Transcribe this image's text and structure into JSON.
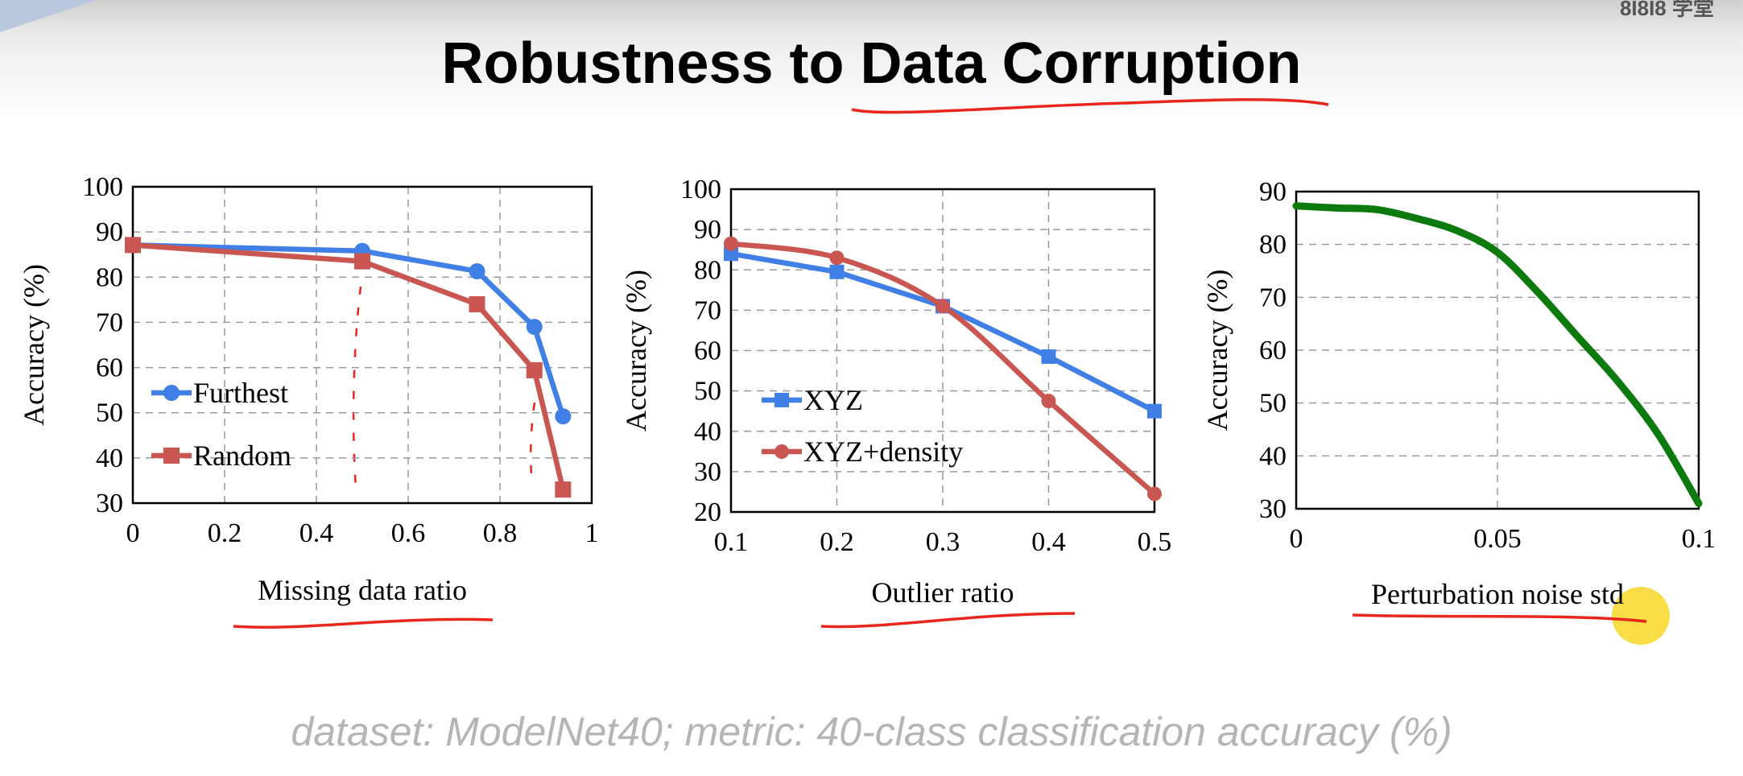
{
  "slide": {
    "title": "Robustness to Data Corruption",
    "watermark": "8I8I8 学堂",
    "footer": "dataset: ModelNet40; metric: 40-class classification accuracy (%)"
  },
  "colors": {
    "blue": "#3f7fe6",
    "red": "#c95650",
    "green": "#0d7a0d",
    "annotation_red": "#e8261c",
    "highlight": "#f5d10a"
  },
  "chart_data": [
    {
      "type": "line",
      "xlabel": "Missing data ratio",
      "ylabel": "Accuracy (%)",
      "xlim": [
        0,
        1
      ],
      "ylim": [
        30,
        100
      ],
      "xticks": [
        "0",
        "0.2",
        "0.4",
        "0.6",
        "0.8",
        "1"
      ],
      "yticks": [
        "30",
        "40",
        "50",
        "60",
        "70",
        "80",
        "90",
        "100"
      ],
      "grid": true,
      "legend_position": "lower-left",
      "series": [
        {
          "name": "Furthest",
          "marker": "circle",
          "color": "#3f7fe6",
          "x": [
            0,
            0.5,
            0.75,
            0.875,
            0.9375
          ],
          "y": [
            87.1,
            85.8,
            81.3,
            69.0,
            49.2
          ]
        },
        {
          "name": "Random",
          "marker": "square",
          "color": "#c95650",
          "x": [
            0,
            0.5,
            0.75,
            0.875,
            0.9375
          ],
          "y": [
            87.1,
            83.5,
            74.0,
            59.4,
            33.0
          ]
        }
      ]
    },
    {
      "type": "line",
      "xlabel": "Outlier ratio",
      "ylabel": "Accuracy (%)",
      "xlim": [
        0.1,
        0.5
      ],
      "ylim": [
        20,
        100
      ],
      "xticks": [
        "0.1",
        "0.2",
        "0.3",
        "0.4",
        "0.5"
      ],
      "yticks": [
        "20",
        "30",
        "40",
        "50",
        "60",
        "70",
        "80",
        "90",
        "100"
      ],
      "grid": true,
      "legend_position": "lower-left",
      "series": [
        {
          "name": "XYZ",
          "marker": "square",
          "color": "#3f7fe6",
          "x": [
            0.1,
            0.2,
            0.3,
            0.4,
            0.5
          ],
          "y": [
            84.0,
            79.5,
            71.0,
            58.5,
            45.0
          ]
        },
        {
          "name": "XYZ+density",
          "marker": "circle",
          "color": "#c95650",
          "x": [
            0.1,
            0.2,
            0.3,
            0.4,
            0.5
          ],
          "y": [
            86.5,
            83.0,
            71.0,
            47.5,
            24.5
          ]
        }
      ]
    },
    {
      "type": "line",
      "xlabel": "Perturbation noise std",
      "ylabel": "Accuracy (%)",
      "xlim": [
        0,
        0.1
      ],
      "ylim": [
        30,
        90
      ],
      "xticks": [
        "0",
        "0.05",
        "0.1"
      ],
      "yticks": [
        "30",
        "40",
        "50",
        "60",
        "70",
        "80",
        "90"
      ],
      "grid": true,
      "series": [
        {
          "marker": "none",
          "color": "#0d7a0d",
          "x": [
            0,
            0.01,
            0.02,
            0.03,
            0.04,
            0.05,
            0.06,
            0.07,
            0.08,
            0.09,
            0.1
          ],
          "y": [
            87.3,
            86.9,
            86.6,
            84.9,
            82.6,
            78.5,
            71.0,
            62.5,
            54.0,
            44.0,
            31.0
          ]
        }
      ]
    }
  ]
}
